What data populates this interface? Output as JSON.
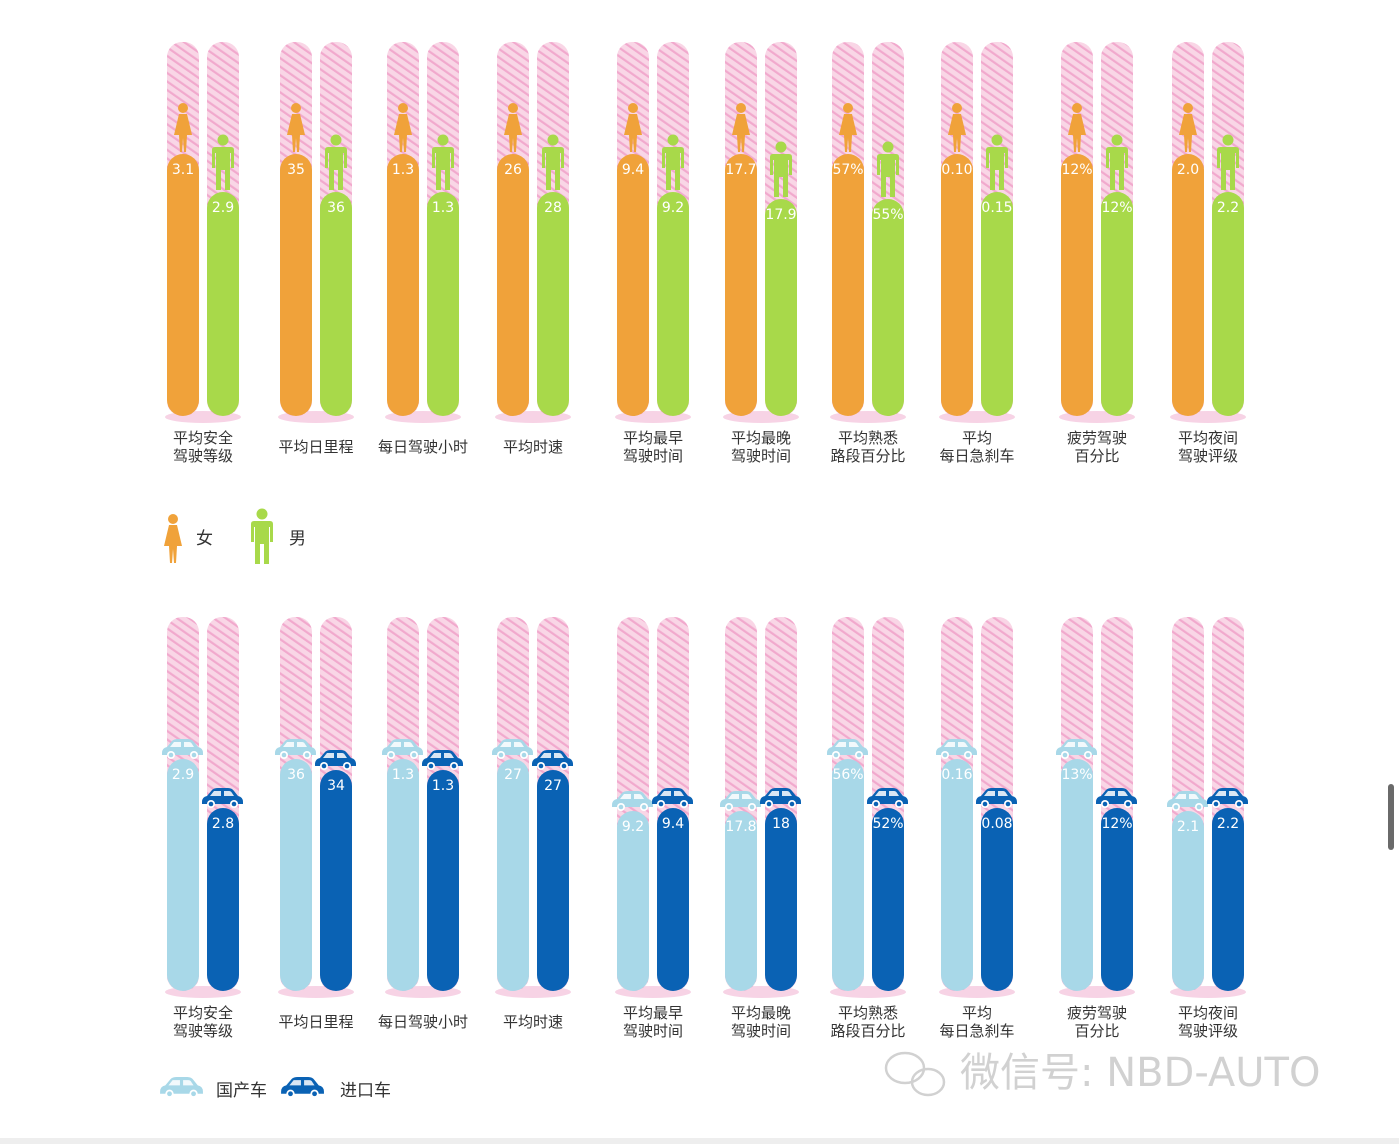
{
  "colors": {
    "track": "#f7cde0",
    "track_stripe": "#ee9cc4",
    "female": "#f0a23a",
    "male": "#a8d94a",
    "domestic": "#a8d8e8",
    "imported": "#0a62b4"
  },
  "icons": {
    "female": "female-person-icon",
    "male": "male-person-icon",
    "domestic": "car-icon",
    "imported": "car-icon",
    "wechat": "wechat-icon"
  },
  "watermark": "微信号: NBD-AUTO",
  "chart_data": [
    {
      "type": "bar",
      "categories": [
        [
          "平均安全",
          "驾驶等级"
        ],
        [
          "平均日里程"
        ],
        [
          "每日驾驶小时"
        ],
        [
          "平均时速"
        ],
        [
          "平均最早",
          "驾驶时间"
        ],
        [
          "平均最晚",
          "驾驶时间"
        ],
        [
          "平均熟悉",
          "路段百分比"
        ],
        [
          "平均",
          "每日急刹车"
        ],
        [
          "疲劳驾驶",
          "百分比"
        ],
        [
          "平均夜间",
          "驾驶评级"
        ]
      ],
      "series": [
        {
          "name": "女",
          "values": [
            3.1,
            35,
            1.3,
            26,
            9.4,
            17.7,
            57,
            0.1,
            12,
            2.0
          ],
          "labels": [
            "3.1",
            "35",
            "1.3",
            "26",
            "9.4",
            "17.7",
            "57%",
            "0.10",
            "12%",
            "2.0"
          ],
          "fill": [
            0.7,
            0.7,
            0.7,
            0.7,
            0.7,
            0.7,
            0.7,
            0.7,
            0.7,
            0.7
          ]
        },
        {
          "name": "男",
          "values": [
            2.9,
            36,
            1.3,
            28,
            9.2,
            17.9,
            55,
            0.15,
            12,
            2.2
          ],
          "labels": [
            "2.9",
            "36",
            "1.3",
            "28",
            "9.2",
            "17.9",
            "55%",
            "0.15",
            "12%",
            "2.2"
          ],
          "fill": [
            0.6,
            0.6,
            0.6,
            0.6,
            0.6,
            0.58,
            0.58,
            0.6,
            0.6,
            0.6
          ]
        }
      ],
      "legend": [
        {
          "label": "女",
          "icon": "female-person-icon"
        },
        {
          "label": "男",
          "icon": "male-person-icon"
        }
      ]
    },
    {
      "type": "bar",
      "categories": [
        [
          "平均安全",
          "驾驶等级"
        ],
        [
          "平均日里程"
        ],
        [
          "每日驾驶小时"
        ],
        [
          "平均时速"
        ],
        [
          "平均最早",
          "驾驶时间"
        ],
        [
          "平均最晚",
          "驾驶时间"
        ],
        [
          "平均熟悉",
          "路段百分比"
        ],
        [
          "平均",
          "每日急刹车"
        ],
        [
          "疲劳驾驶",
          "百分比"
        ],
        [
          "平均夜间",
          "驾驶评级"
        ]
      ],
      "series": [
        {
          "name": "国产车",
          "values": [
            2.9,
            36,
            1.3,
            27,
            9.2,
            17.8,
            56,
            0.16,
            13,
            2.1
          ],
          "labels": [
            "2.9",
            "36",
            "1.3",
            "27",
            "9.2",
            "17.8",
            "56%",
            "0.16",
            "13%",
            "2.1"
          ],
          "fill": [
            0.62,
            0.62,
            0.62,
            0.62,
            0.48,
            0.48,
            0.62,
            0.62,
            0.62,
            0.48
          ]
        },
        {
          "name": "进口车",
          "values": [
            2.8,
            34,
            1.3,
            27,
            9.4,
            18,
            52,
            0.08,
            12,
            2.2
          ],
          "labels": [
            "2.8",
            "34",
            "1.3",
            "27",
            "9.4",
            "18",
            "52%",
            "0.08",
            "12%",
            "2.2"
          ],
          "fill": [
            0.49,
            0.59,
            0.59,
            0.59,
            0.49,
            0.49,
            0.49,
            0.49,
            0.49,
            0.49
          ]
        }
      ],
      "legend": [
        {
          "label": "国产车",
          "icon": "car-icon"
        },
        {
          "label": "进口车",
          "icon": "car-icon"
        }
      ]
    }
  ]
}
